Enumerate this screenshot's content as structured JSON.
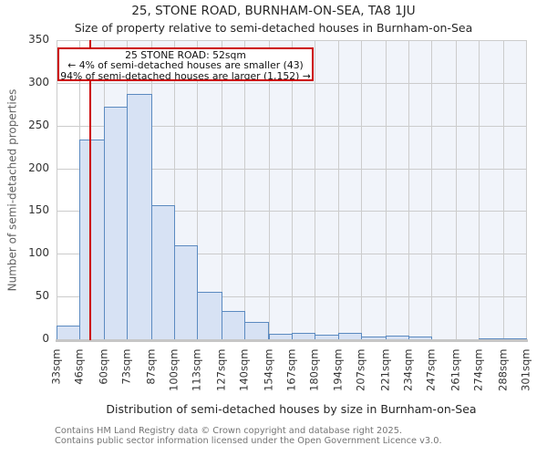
{
  "chart_data": {
    "type": "bar",
    "subtype": "histogram",
    "title": "25, STONE ROAD, BURNHAM-ON-SEA, TA8 1JU",
    "subtitle": "Size of property relative to semi-detached houses in Burnham-on-Sea",
    "xlabel": "Distribution of semi-detached houses by size in Burnham-on-Sea",
    "ylabel": "Number of semi-detached properties",
    "tick_labels": [
      "33sqm",
      "46sqm",
      "60sqm",
      "73sqm",
      "87sqm",
      "100sqm",
      "113sqm",
      "127sqm",
      "140sqm",
      "154sqm",
      "167sqm",
      "180sqm",
      "194sqm",
      "207sqm",
      "221sqm",
      "234sqm",
      "247sqm",
      "261sqm",
      "274sqm",
      "288sqm",
      "301sqm"
    ],
    "bin_edges_sqm": [
      33,
      46,
      60,
      73,
      87,
      100,
      113,
      127,
      140,
      154,
      167,
      180,
      194,
      207,
      221,
      234,
      247,
      261,
      274,
      288,
      301
    ],
    "values": [
      16,
      234,
      272,
      287,
      157,
      110,
      56,
      33,
      20,
      6,
      7,
      5,
      8,
      3,
      4,
      3,
      0,
      0,
      1,
      1
    ],
    "ylim": [
      0,
      350
    ],
    "yticks": [
      0,
      50,
      100,
      150,
      200,
      250,
      300,
      350
    ],
    "grid": true,
    "legend": null,
    "marker": {
      "value_sqm": 52
    },
    "annotation": {
      "line1": "25 STONE ROAD: 52sqm",
      "line2": "← 4% of semi-detached houses are smaller (43)",
      "line3": "94% of semi-detached houses are larger (1,152) →"
    },
    "colors": {
      "bar_fill": "#d7e2f4",
      "bar_edge": "#5b8ac0",
      "marker_line": "#cc0000",
      "annotation_border": "#cc0000",
      "highlight_region": "#f1f4fa",
      "gridline": "#cccccc",
      "axis_line": "#c6c6c6",
      "text_dark": "#333333"
    }
  },
  "footer": {
    "line1": "Contains HM Land Registry data © Crown copyright and database right 2025.",
    "line2": "Contains public sector information licensed under the Open Government Licence v3.0."
  }
}
